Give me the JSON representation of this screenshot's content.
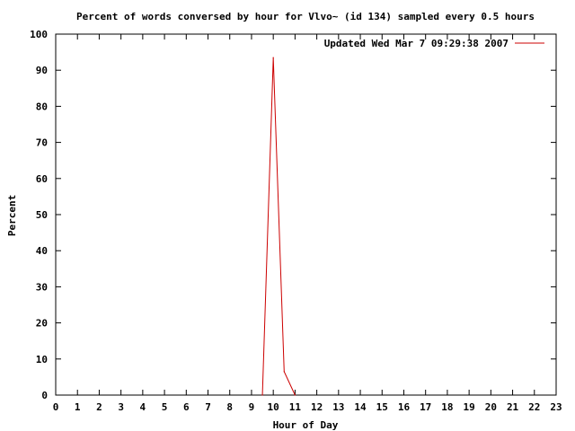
{
  "chart_data": {
    "type": "line",
    "title": "Percent of words conversed by hour for Vlvo~ (id 134) sampled every 0.5 hours",
    "xlabel": "Hour of Day",
    "ylabel": "Percent",
    "xlim": [
      0,
      23
    ],
    "ylim": [
      0,
      100
    ],
    "xticks": [
      "0",
      "1",
      "2",
      "3",
      "4",
      "5",
      "6",
      "7",
      "8",
      "9",
      "10",
      "11",
      "12",
      "13",
      "14",
      "15",
      "16",
      "17",
      "18",
      "19",
      "20",
      "21",
      "22",
      "23"
    ],
    "yticks": [
      "0",
      "10",
      "20",
      "30",
      "40",
      "50",
      "60",
      "70",
      "80",
      "90",
      "100"
    ],
    "grid": false,
    "legend_position": "top-right",
    "series": [
      {
        "name": "Updated Wed Mar  7 09:29:38 2007",
        "color": "#cc0000",
        "x": [
          9.5,
          10.0,
          10.5,
          11.0
        ],
        "y": [
          0,
          93.5,
          6.5,
          0
        ]
      }
    ]
  }
}
